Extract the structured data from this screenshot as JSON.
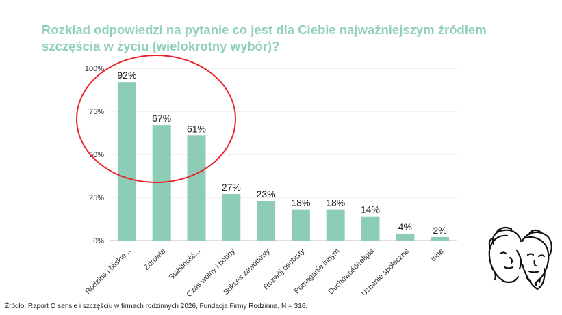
{
  "title_line1": "Rozkład odpowiedzi na pytanie co jest dla Ciebie najważniejszym źródłem",
  "title_line2": "szczęścia w życiu (wielokrotny wybór)?",
  "source": "Źródło: Raport O sensie i szczęściu w firmach rodzinnych 2026, Fundacja Firmy Rodzinne, N = 316.",
  "colors": {
    "bar": "#8ecdb5",
    "title": "#8fd0b8",
    "highlight": "#e8232a"
  },
  "chart_data": {
    "type": "bar",
    "title": "Rozkład odpowiedzi na pytanie co jest dla Ciebie najważniejszym źródłem szczęścia w życiu (wielokrotny wybór)?",
    "categories": [
      "Rodzina i bliskie...",
      "Zdrowie",
      "Stabilność...",
      "Czas wolny i hobby",
      "Sukces zawodowy",
      "Rozwój osobisty",
      "Pomaganie innym",
      "Duchowość/religia",
      "Uznanie społeczne",
      "Inne"
    ],
    "values": [
      92,
      67,
      61,
      27,
      23,
      18,
      18,
      14,
      4,
      2
    ],
    "value_labels": [
      "92%",
      "67%",
      "61%",
      "27%",
      "23%",
      "18%",
      "18%",
      "14%",
      "4%",
      "2%"
    ],
    "yticks": [
      0,
      25,
      50,
      75,
      100
    ],
    "ytick_labels": [
      "0%",
      "25%",
      "50%",
      "75%",
      "100%"
    ],
    "ylim": [
      0,
      100
    ],
    "grid": true,
    "xlabel": "",
    "ylabel": ""
  }
}
